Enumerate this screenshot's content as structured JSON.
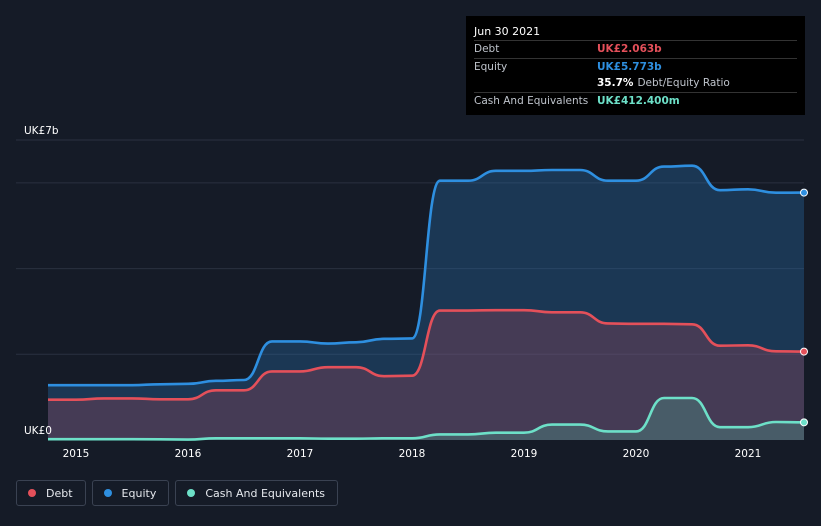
{
  "tooltip": {
    "date": "Jun 30 2021",
    "debt_label": "Debt",
    "debt_value": "UK£2.063b",
    "equity_label": "Equity",
    "equity_value": "UK£5.773b",
    "ratio_value": "35.7%",
    "ratio_label": "Debt/Equity Ratio",
    "cash_label": "Cash And Equivalents",
    "cash_value": "UK£412.400m"
  },
  "colors": {
    "background": "#151b27",
    "debt": "#e4505a",
    "equity": "#2e8fe0",
    "cash": "#6de0c8"
  },
  "legend": [
    {
      "label": "Debt",
      "color": "#e4505a"
    },
    {
      "label": "Equity",
      "color": "#2e8fe0"
    },
    {
      "label": "Cash And Equivalents",
      "color": "#6de0c8"
    }
  ],
  "chart_data": {
    "type": "area",
    "y_unit": "UK£ billions",
    "ylim": [
      0,
      7
    ],
    "y_tick_labels": [
      {
        "value": 7,
        "label": "UK£7b"
      },
      {
        "value": 0,
        "label": "UK£0"
      }
    ],
    "xlim": [
      2014.75,
      2021.5
    ],
    "x_ticks": [
      2015,
      2016,
      2017,
      2018,
      2019,
      2020,
      2021
    ],
    "x_tick_labels": [
      "2015",
      "2016",
      "2017",
      "2018",
      "2019",
      "2020",
      "2021"
    ],
    "grid": true,
    "legend_position": "bottom-left",
    "series": [
      {
        "name": "Equity",
        "color": "#2e8fe0",
        "points": [
          [
            2014.75,
            1.28
          ],
          [
            2015.25,
            1.28
          ],
          [
            2015.5,
            1.28
          ],
          [
            2015.75,
            1.3
          ],
          [
            2016.0,
            1.31
          ],
          [
            2016.25,
            1.38
          ],
          [
            2016.5,
            1.4
          ],
          [
            2016.75,
            2.3
          ],
          [
            2017.0,
            2.3
          ],
          [
            2017.25,
            2.25
          ],
          [
            2017.5,
            2.28
          ],
          [
            2017.75,
            2.36
          ],
          [
            2018.0,
            2.37
          ],
          [
            2018.25,
            6.05
          ],
          [
            2018.5,
            6.05
          ],
          [
            2018.75,
            6.28
          ],
          [
            2019.0,
            6.28
          ],
          [
            2019.25,
            6.3
          ],
          [
            2019.5,
            6.3
          ],
          [
            2019.75,
            6.05
          ],
          [
            2020.0,
            6.05
          ],
          [
            2020.25,
            6.38
          ],
          [
            2020.5,
            6.4
          ],
          [
            2020.75,
            5.83
          ],
          [
            2021.0,
            5.85
          ],
          [
            2021.25,
            5.77
          ],
          [
            2021.5,
            5.773
          ]
        ]
      },
      {
        "name": "Debt",
        "color": "#e4505a",
        "points": [
          [
            2014.75,
            0.94
          ],
          [
            2015.0,
            0.94
          ],
          [
            2015.25,
            0.97
          ],
          [
            2015.5,
            0.97
          ],
          [
            2015.75,
            0.95
          ],
          [
            2016.0,
            0.95
          ],
          [
            2016.25,
            1.16
          ],
          [
            2016.5,
            1.16
          ],
          [
            2016.75,
            1.6
          ],
          [
            2017.0,
            1.6
          ],
          [
            2017.25,
            1.7
          ],
          [
            2017.5,
            1.7
          ],
          [
            2017.75,
            1.49
          ],
          [
            2018.0,
            1.5
          ],
          [
            2018.25,
            3.02
          ],
          [
            2018.5,
            3.02
          ],
          [
            2018.75,
            3.03
          ],
          [
            2019.0,
            3.03
          ],
          [
            2019.25,
            2.98
          ],
          [
            2019.5,
            2.98
          ],
          [
            2019.75,
            2.72
          ],
          [
            2020.0,
            2.71
          ],
          [
            2020.25,
            2.71
          ],
          [
            2020.5,
            2.7
          ],
          [
            2020.75,
            2.2
          ],
          [
            2021.0,
            2.21
          ],
          [
            2021.25,
            2.07
          ],
          [
            2021.5,
            2.063
          ]
        ]
      },
      {
        "name": "Cash And Equivalents",
        "color": "#6de0c8",
        "points": [
          [
            2014.75,
            0.02
          ],
          [
            2015.0,
            0.02
          ],
          [
            2015.5,
            0.02
          ],
          [
            2016.0,
            0.01
          ],
          [
            2016.25,
            0.04
          ],
          [
            2016.75,
            0.04
          ],
          [
            2017.0,
            0.04
          ],
          [
            2017.25,
            0.03
          ],
          [
            2017.5,
            0.03
          ],
          [
            2017.75,
            0.04
          ],
          [
            2018.0,
            0.04
          ],
          [
            2018.25,
            0.13
          ],
          [
            2018.5,
            0.13
          ],
          [
            2018.75,
            0.17
          ],
          [
            2019.0,
            0.17
          ],
          [
            2019.25,
            0.36
          ],
          [
            2019.5,
            0.36
          ],
          [
            2019.75,
            0.2
          ],
          [
            2020.0,
            0.2
          ],
          [
            2020.25,
            0.98
          ],
          [
            2020.5,
            0.98
          ],
          [
            2020.75,
            0.3
          ],
          [
            2021.0,
            0.3
          ],
          [
            2021.25,
            0.42
          ],
          [
            2021.5,
            0.4124
          ]
        ]
      }
    ]
  }
}
